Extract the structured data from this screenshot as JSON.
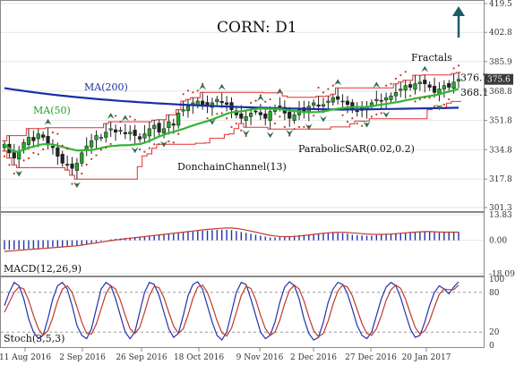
{
  "chart_data": {
    "type": "candlestick",
    "title": "CORN: D1",
    "colors": {
      "up_candle": "#22aa22",
      "down_candle": "#222222",
      "ma200": "#1a2fa8",
      "ma50": "#33b533",
      "donchian": "#e03030",
      "sar": "#c0392b",
      "fractal": "#2e6b4f",
      "macd_hist": "#2233aa",
      "macd_signal": "#c0392b",
      "stoch_k": "#2233aa",
      "stoch_d": "#c0392b",
      "arrow": "#1f5a6a"
    },
    "price_panel": {
      "ylim": [
        301.3,
        419.5
      ],
      "yticks": [
        "419.5",
        "402.8",
        "385.9",
        "368.8",
        "351.8",
        "334.8",
        "317.8",
        "301.3"
      ],
      "price_labels": [
        "376.7",
        "375.6",
        "368.1"
      ],
      "annotations": {
        "ma200": "MA(200)",
        "ma50": "MA(50)",
        "fractals": "Fractals",
        "sar": "ParabolicSAR(0.02,0.2)",
        "donchian": "DonchainChannel(13)"
      },
      "close": [
        338,
        333,
        330,
        334,
        339,
        342,
        340,
        344,
        342,
        338,
        336,
        331,
        327,
        326,
        324,
        327,
        333,
        337,
        340,
        343,
        342,
        345,
        347,
        345,
        346,
        344,
        345,
        343,
        341,
        344,
        347,
        349,
        345,
        347,
        351,
        349,
        356,
        358,
        360,
        362,
        363,
        361,
        360,
        362,
        364,
        362,
        361,
        358,
        355,
        353,
        354,
        356,
        357,
        355,
        353,
        357,
        359,
        360,
        356,
        353,
        355,
        358,
        357,
        360,
        362,
        360,
        361,
        363,
        365,
        364,
        363,
        361,
        358,
        357,
        359,
        360,
        362,
        364,
        363,
        365,
        366,
        368,
        370,
        372,
        371,
        373,
        374,
        373,
        371,
        368,
        370,
        372,
        371,
        374,
        375.6
      ]
    },
    "macd_panel": {
      "label": "MACD(12,26,9)",
      "ylim": [
        -18.09,
        13.83
      ],
      "yticks": [
        "13.83",
        "0.00",
        "-18.09"
      ],
      "hist": [
        -5,
        -5,
        -5,
        -5,
        -5,
        -4.5,
        -4.5,
        -4.5,
        -4,
        -4,
        -3.5,
        -3.5,
        -3.5,
        -3,
        -3,
        -3,
        -2.5,
        -2,
        -1.5,
        -1,
        -0.5,
        0,
        0.5,
        0.8,
        1,
        1.2,
        1.5,
        1.8,
        2,
        2.2,
        2.5,
        2.8,
        3,
        3.2,
        3.5,
        3.8,
        4,
        4.2,
        4.5,
        4.7,
        5,
        5.2,
        5.3,
        5.5,
        5.6,
        5.7,
        5.7,
        5.5,
        5,
        4.5,
        4,
        3.5,
        3,
        2.5,
        2,
        1.5,
        1.5,
        1.8,
        2,
        2.2,
        2.5,
        2.8,
        3,
        3,
        3.2,
        3.5,
        3.8,
        4,
        4,
        4,
        3.8,
        3.5,
        3,
        2.8,
        2.6,
        2.5,
        2.5,
        2.8,
        3,
        3.2,
        3.5,
        3.8,
        4,
        4.2,
        4.5,
        4.6,
        4.7,
        4.6,
        4.5,
        4.3,
        4.2,
        4.3,
        4.5,
        4.6,
        4.5
      ],
      "signal": [
        -6,
        -5.8,
        -5.6,
        -5.4,
        -5.2,
        -5,
        -4.8,
        -4.6,
        -4.4,
        -4.2,
        -4,
        -3.8,
        -3.6,
        -3.4,
        -3.2,
        -3,
        -2.6,
        -2.2,
        -1.8,
        -1.4,
        -1,
        -0.6,
        -0.2,
        0.2,
        0.5,
        0.8,
        1.1,
        1.4,
        1.7,
        2,
        2.3,
        2.6,
        2.9,
        3.2,
        3.5,
        3.8,
        4.1,
        4.4,
        4.7,
        5,
        5.3,
        5.6,
        5.9,
        6.1,
        6.3,
        6.5,
        6.6,
        6.6,
        6.4,
        6,
        5.5,
        5,
        4.4,
        3.8,
        3.2,
        2.7,
        2.3,
        2.1,
        2,
        2,
        2.1,
        2.3,
        2.6,
        2.9,
        3.2,
        3.5,
        3.8,
        4,
        4.2,
        4.3,
        4.3,
        4.2,
        4,
        3.8,
        3.6,
        3.4,
        3.3,
        3.2,
        3.2,
        3.3,
        3.4,
        3.6,
        3.8,
        4,
        4.2,
        4.4,
        4.6,
        4.7,
        4.7,
        4.6,
        4.5,
        4.4,
        4.4,
        4.4,
        4.4
      ]
    },
    "stoch_panel": {
      "label": "Stoch(3,5,3)",
      "ylim": [
        0,
        100
      ],
      "yticks": [
        "100",
        "80",
        "20",
        "0"
      ],
      "k": [
        60,
        80,
        95,
        90,
        70,
        40,
        20,
        10,
        15,
        40,
        70,
        90,
        95,
        85,
        60,
        30,
        15,
        10,
        25,
        55,
        85,
        95,
        90,
        70,
        45,
        20,
        10,
        20,
        50,
        80,
        95,
        92,
        75,
        50,
        25,
        12,
        18,
        45,
        75,
        92,
        96,
        85,
        60,
        35,
        15,
        8,
        20,
        50,
        80,
        95,
        92,
        70,
        45,
        20,
        10,
        15,
        35,
        65,
        88,
        96,
        90,
        70,
        40,
        18,
        8,
        12,
        35,
        65,
        85,
        95,
        92,
        78,
        55,
        30,
        15,
        10,
        20,
        45,
        70,
        88,
        95,
        90,
        72,
        48,
        25,
        12,
        15,
        35,
        60,
        80,
        90,
        85,
        78,
        88,
        96
      ],
      "d": [
        50,
        65,
        80,
        88,
        85,
        68,
        45,
        25,
        15,
        22,
        42,
        67,
        85,
        90,
        80,
        58,
        35,
        18,
        17,
        32,
        55,
        78,
        90,
        85,
        68,
        45,
        25,
        18,
        27,
        50,
        75,
        89,
        87,
        72,
        50,
        29,
        18,
        25,
        46,
        71,
        88,
        91,
        80,
        60,
        37,
        19,
        14,
        26,
        50,
        75,
        89,
        86,
        69,
        45,
        25,
        15,
        20,
        38,
        63,
        83,
        91,
        85,
        67,
        43,
        22,
        13,
        18,
        37,
        62,
        82,
        91,
        88,
        75,
        54,
        33,
        18,
        15,
        25,
        45,
        68,
        84,
        91,
        86,
        70,
        48,
        27,
        17,
        22,
        37,
        58,
        77,
        85,
        84,
        84,
        91
      ]
    },
    "x_labels": [
      "11 Aug 2016",
      "2 Sep 2016",
      "26 Sep 2016",
      "18 Oct 2016",
      "9 Nov 2016",
      "2 Dec 2016",
      "27 Dec 2016",
      "20 Jan 2017"
    ]
  }
}
